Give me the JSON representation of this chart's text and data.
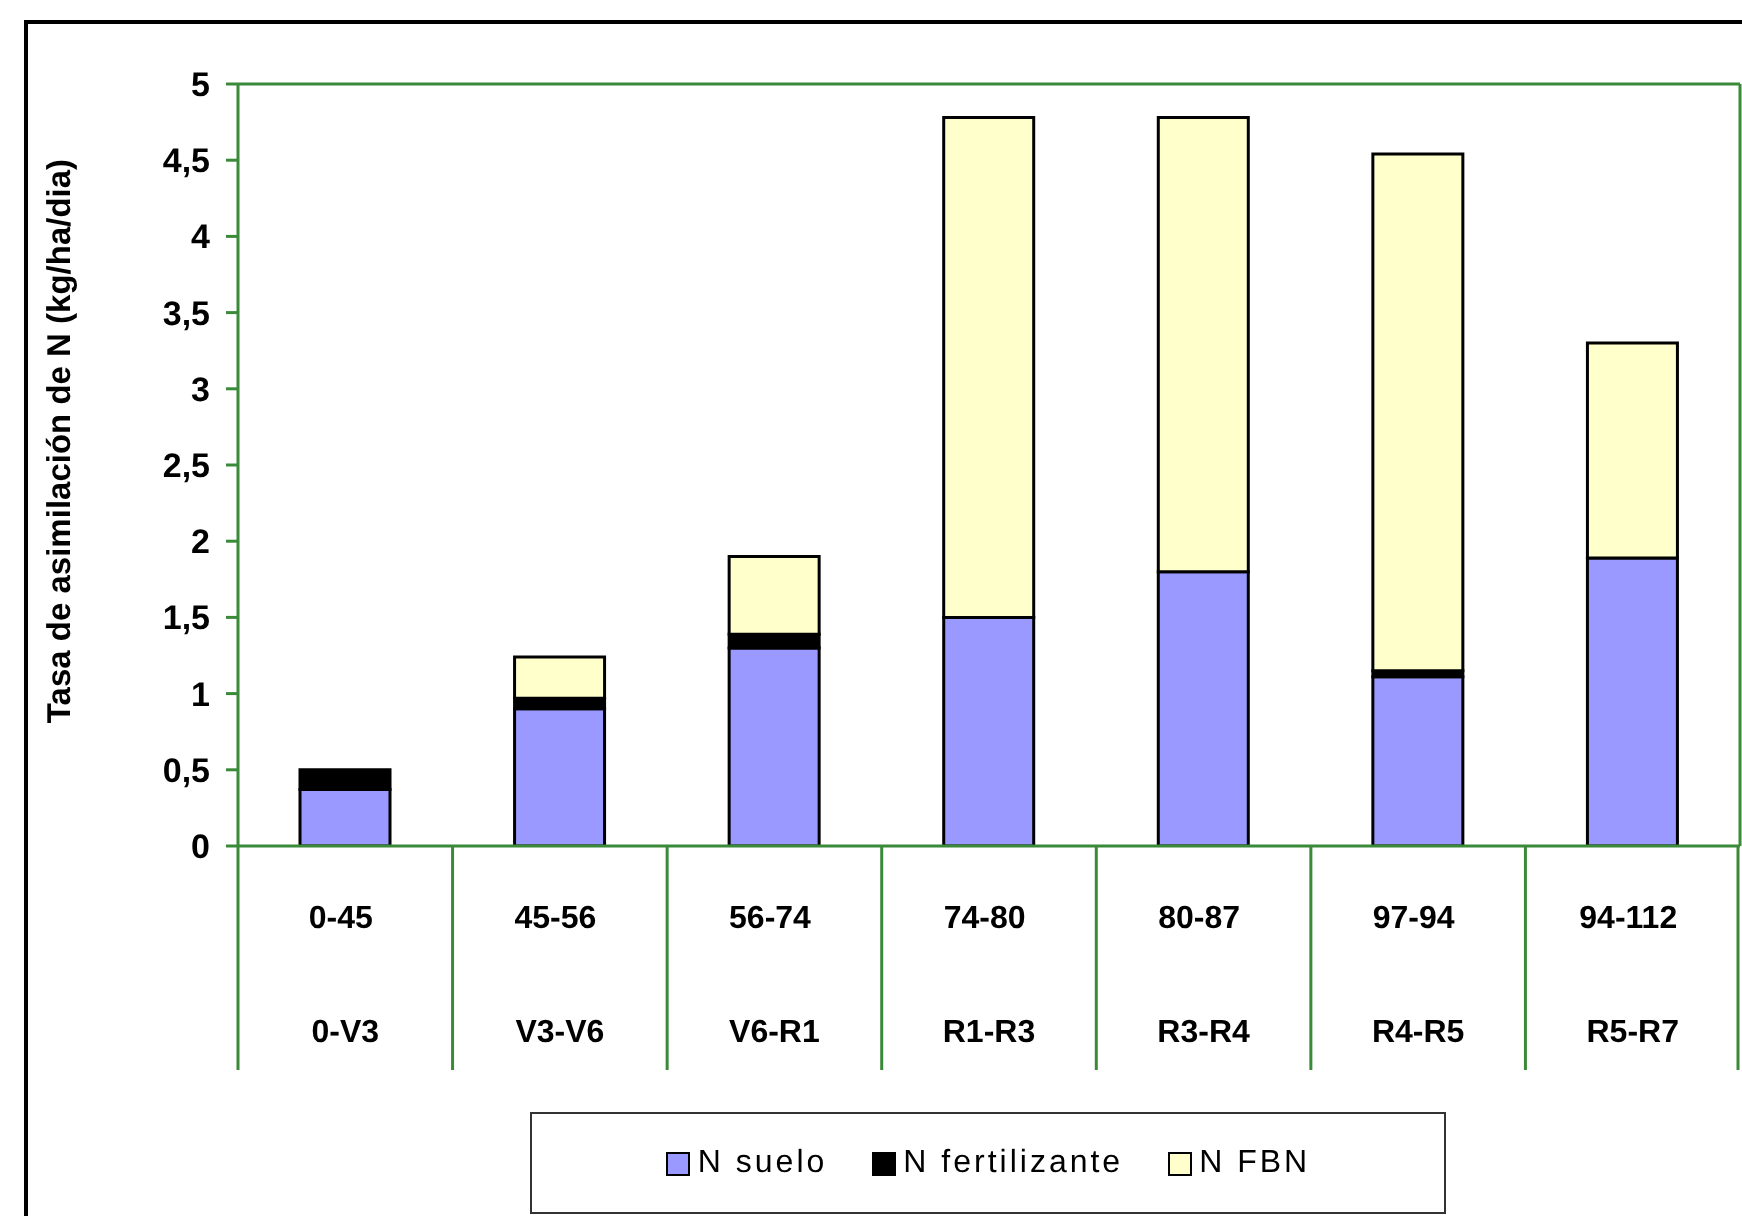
{
  "chart_data": {
    "type": "bar",
    "ylabel": "Tasa de asimilación de N (kg/ha/dia)",
    "categories": [
      "0-45\n0-V3",
      "45-56\nV3-V6",
      "56-74\nV6-R1",
      "74-80\nR1-R3",
      "80-87\nR3-R4",
      "97-94\nR4-R5",
      "94-112\nR5-R7"
    ],
    "series": [
      {
        "name": "N suelo",
        "color": "#9999ff",
        "values": [
          0.37,
          0.9,
          1.3,
          1.5,
          1.8,
          1.11,
          1.89
        ]
      },
      {
        "name": "N fertilizante",
        "color": "#000000",
        "values": [
          0.13,
          0.07,
          0.09,
          0,
          0,
          0.04,
          0
        ]
      },
      {
        "name": "N FBN",
        "color": "#ffffcc",
        "values": [
          0,
          0.27,
          0.51,
          3.28,
          2.98,
          3.39,
          1.41
        ]
      }
    ],
    "stacked": true,
    "ylim": [
      0,
      5
    ],
    "yticks": [
      0,
      {
        "value": 0.5,
        "label": "0,5"
      },
      1,
      {
        "value": 1.5,
        "label": "1,5"
      },
      2,
      {
        "value": 2.5,
        "label": "2,5"
      },
      3,
      {
        "value": 3.5,
        "label": "3,5"
      },
      4,
      {
        "value": 4.5,
        "label": "4,5"
      },
      5
    ],
    "legend": "bottom"
  }
}
